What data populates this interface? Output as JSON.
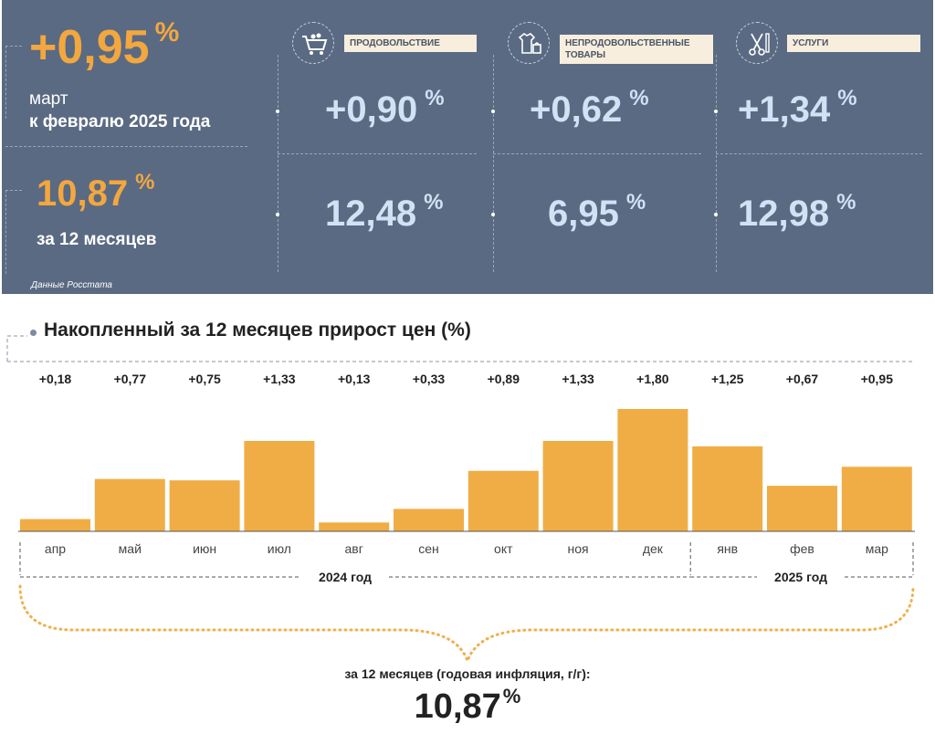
{
  "summary": {
    "monthly_value": "+0,95",
    "pct": "%",
    "monthly_caption_line1": "март",
    "monthly_caption_line2": "к февралю 2025 года",
    "annual_value": "10,87",
    "annual_caption": "за 12 месяцев",
    "source": "Данные Росстата"
  },
  "categories": [
    {
      "label": "ПРОДОВОЛЬСТВИЕ",
      "icon": "shopping-cart-icon",
      "monthly": "+0,90",
      "annual": "12,48"
    },
    {
      "label": "НЕПРОДОВОЛЬСТВЕННЫЕ ТОВАРЫ",
      "icon": "clothes-bag-icon",
      "monthly": "+0,62",
      "annual": "6,95"
    },
    {
      "label": "УСЛУГИ",
      "icon": "scissors-comb-icon",
      "monthly": "+1,34",
      "annual": "12,98"
    }
  ],
  "chart_data": {
    "type": "bar",
    "title": "Накопленный за 12 месяцев прирост цен (%)",
    "categories": [
      "апр",
      "май",
      "июн",
      "июл",
      "авг",
      "сен",
      "окт",
      "ноя",
      "дек",
      "янв",
      "фев",
      "мар"
    ],
    "values": [
      0.18,
      0.77,
      0.75,
      1.33,
      0.13,
      0.33,
      0.89,
      1.33,
      1.8,
      1.25,
      0.67,
      0.95
    ],
    "value_labels": [
      "+0,18",
      "+0,77",
      "+0,75",
      "+1,33",
      "+0,13",
      "+0,33",
      "+0,89",
      "+1,33",
      "+1,80",
      "+1,25",
      "+0,67",
      "+0,95"
    ],
    "year_groups": [
      {
        "label": "2024 год",
        "from": 0,
        "to": 8
      },
      {
        "label": "2025 год",
        "from": 9,
        "to": 11
      }
    ],
    "ylim": [
      0,
      1.8
    ],
    "bar_color": "#f1ad45",
    "footer_label": "за 12 месяцев (годовая инфляция, г/г):",
    "footer_value": "10,87",
    "footer_pct": "%"
  },
  "colors": {
    "panel": "#5a6a82",
    "accent": "#f3a73f",
    "light_value": "#cfe3f5"
  }
}
